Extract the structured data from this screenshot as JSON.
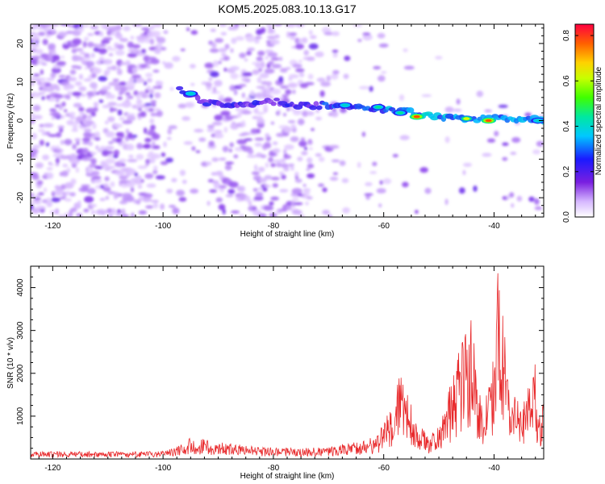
{
  "title": "KOM5.2025.083.10.13.G17",
  "chart_data": [
    {
      "type": "heatmap",
      "xlabel": "Height of straight line (km)",
      "ylabel": "Frequency (Hz)",
      "xlim": [
        -124,
        -31
      ],
      "ylim": [
        -25,
        25
      ],
      "x_ticks": [
        -120,
        -100,
        -80,
        -60,
        -40
      ],
      "y_ticks": [
        -20,
        -10,
        0,
        10,
        20
      ],
      "colorbar": {
        "label": "Normalized spectral amplitude",
        "range": [
          0,
          0.85
        ],
        "ticks": [
          0.0,
          0.2,
          0.4,
          0.6,
          0.8
        ],
        "tick_labels": [
          "0.0",
          "0.2",
          "0.4",
          "0.6",
          "0.8"
        ]
      },
      "ridge": {
        "x": [
          -97,
          -93,
          -90,
          -85,
          -80,
          -75,
          -70,
          -65,
          -60,
          -55,
          -50,
          -45,
          -40,
          -35,
          -31
        ],
        "y": [
          8,
          5,
          4,
          4,
          5,
          4,
          4,
          4,
          3,
          2,
          1,
          0.5,
          0.5,
          0.5,
          0
        ]
      },
      "hot_spots": [
        {
          "x": -54,
          "y": 1,
          "amp": 0.8
        },
        {
          "x": -41,
          "y": 0,
          "amp": 0.8
        },
        {
          "x": -45,
          "y": 0.5,
          "amp": 0.65
        },
        {
          "x": -57,
          "y": 2,
          "amp": 0.45
        },
        {
          "x": -61,
          "y": 3.5,
          "amp": 0.45
        },
        {
          "x": -67,
          "y": 4,
          "amp": 0.4
        },
        {
          "x": -95,
          "y": 7,
          "amp": 0.4
        },
        {
          "x": -32,
          "y": 0,
          "amp": 0.4
        }
      ]
    },
    {
      "type": "line",
      "xlabel": "Height of straight line (km)",
      "ylabel": "SNR (10 * v/v)",
      "xlim": [
        -124,
        -31
      ],
      "ylim": [
        0,
        4500
      ],
      "x_ticks": [
        -120,
        -100,
        -80,
        -60,
        -40
      ],
      "y_ticks": [
        1000,
        2000,
        3000,
        4000
      ],
      "series": [
        {
          "color": "#e8282a",
          "x": [
            -124,
            -110,
            -100,
            -97,
            -95,
            -90,
            -85,
            -80,
            -75,
            -70,
            -65,
            -62,
            -60,
            -58,
            -57,
            -56,
            -55,
            -52,
            -50,
            -47,
            -45,
            -44,
            -43,
            -42,
            -40,
            -39,
            -38.5,
            -37,
            -36,
            -35,
            -33,
            -32.5,
            -32,
            -31
          ],
          "y": [
            150,
            150,
            160,
            300,
            450,
            350,
            280,
            230,
            220,
            250,
            350,
            450,
            700,
            1300,
            1800,
            1550,
            1100,
            450,
            650,
            1900,
            2800,
            3000,
            1900,
            900,
            2200,
            4500,
            3400,
            900,
            1400,
            1100,
            1700,
            2000,
            800,
            1500
          ]
        }
      ]
    }
  ]
}
